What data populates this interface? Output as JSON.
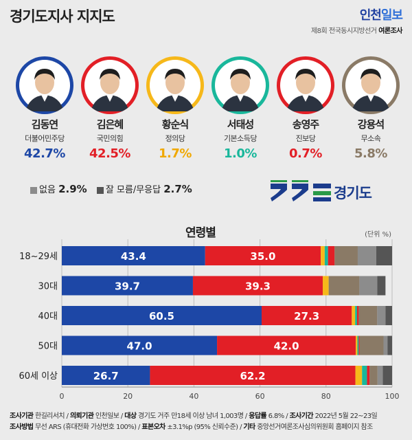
{
  "header": {
    "title": "경기도지사 지지도",
    "brand_part1": "인천",
    "brand_part2": "일보",
    "survey_name": "제8회 전국동시지방선거",
    "survey_name_bold": "여론조사"
  },
  "candidates": [
    {
      "name": "김동연",
      "party": "더불어민주당",
      "pct": "42.7%",
      "color": "#1d47a6",
      "pct_color": "#1d47a6"
    },
    {
      "name": "김은혜",
      "party": "국민의힘",
      "pct": "42.5%",
      "color": "#e21f26",
      "pct_color": "#e21f26"
    },
    {
      "name": "황순식",
      "party": "정의당",
      "pct": "1.7%",
      "color": "#f6b81a",
      "pct_color": "#f0a800"
    },
    {
      "name": "서태성",
      "party": "기본소득당",
      "pct": "1.0%",
      "color": "#19b79b",
      "pct_color": "#19b79b"
    },
    {
      "name": "송영주",
      "party": "진보당",
      "pct": "0.7%",
      "color": "#e21f26",
      "pct_color": "#e21f26"
    },
    {
      "name": "강용석",
      "party": "무소속",
      "pct": "5.8%",
      "color": "#8a7a66",
      "pct_color": "#8a7a66"
    }
  ],
  "undecided": [
    {
      "label": "없음",
      "value": "2.9%",
      "color": "#8c8c8c"
    },
    {
      "label": "잘 모름/무응답",
      "value": "2.7%",
      "color": "#555555"
    }
  ],
  "region_logo_text": "경기도",
  "section_title": "연령별",
  "unit_label": "(단위 %)",
  "chart_data": {
    "type": "bar",
    "stacked": true,
    "orientation": "horizontal",
    "categories": [
      "18~29세",
      "30대",
      "40대",
      "50대",
      "60세 이상"
    ],
    "series": [
      {
        "name": "김동연",
        "color": "#1d47a6",
        "values": [
          43.4,
          39.7,
          60.5,
          47.0,
          26.7
        ]
      },
      {
        "name": "김은혜",
        "color": "#e21f26",
        "values": [
          35.0,
          39.3,
          27.3,
          42.0,
          62.2
        ]
      },
      {
        "name": "황순식",
        "color": "#f6b81a",
        "values": [
          1.2,
          1.8,
          1.0,
          0.5,
          2.0
        ]
      },
      {
        "name": "서태성",
        "color": "#19b79b",
        "values": [
          1.0,
          0.0,
          0.6,
          0.4,
          1.5
        ]
      },
      {
        "name": "송영주",
        "color": "#e21f26",
        "values": [
          2.0,
          0.0,
          0.5,
          0.3,
          0.8
        ]
      },
      {
        "name": "강용석",
        "color": "#8a7a66",
        "values": [
          7.0,
          9.3,
          5.6,
          7.2,
          2.4
        ]
      },
      {
        "name": "없음",
        "color": "#8c8c8c",
        "values": [
          5.6,
          5.4,
          2.5,
          1.2,
          1.6
        ]
      },
      {
        "name": "잘 모름/무응답",
        "color": "#555555",
        "values": [
          4.8,
          2.5,
          2.0,
          1.4,
          2.8
        ]
      }
    ],
    "labels": [
      [
        "43.4",
        "35.0"
      ],
      [
        "39.7",
        "39.3"
      ],
      [
        "60.5",
        "27.3"
      ],
      [
        "47.0",
        "42.0"
      ],
      [
        "26.7",
        "62.2"
      ]
    ],
    "x_ticks": [
      "0",
      "20",
      "40",
      "60",
      "80",
      "100"
    ],
    "xlim": [
      0,
      100
    ],
    "grid": true
  },
  "footer": {
    "line1": [
      {
        "k": "조사기관",
        "v": "한길리서치"
      },
      {
        "k": "의뢰기관",
        "v": "인천일보"
      },
      {
        "k": "대상",
        "v": "경기도 거주 만18세 이상 남녀 1,003명"
      },
      {
        "k": "응답률",
        "v": "6.8%"
      },
      {
        "k": "조사기간",
        "v": "2022년 5월 22~23일"
      }
    ],
    "line2": [
      {
        "k": "조사방법",
        "v": "무선 ARS (휴대전화 가상번호 100%)"
      },
      {
        "k": "표본오차",
        "v": "±3.1%p (95% 신뢰수준)"
      },
      {
        "k": "기타",
        "v": "중앙선거여론조사심의위원회 홈페이지 참조"
      }
    ]
  }
}
